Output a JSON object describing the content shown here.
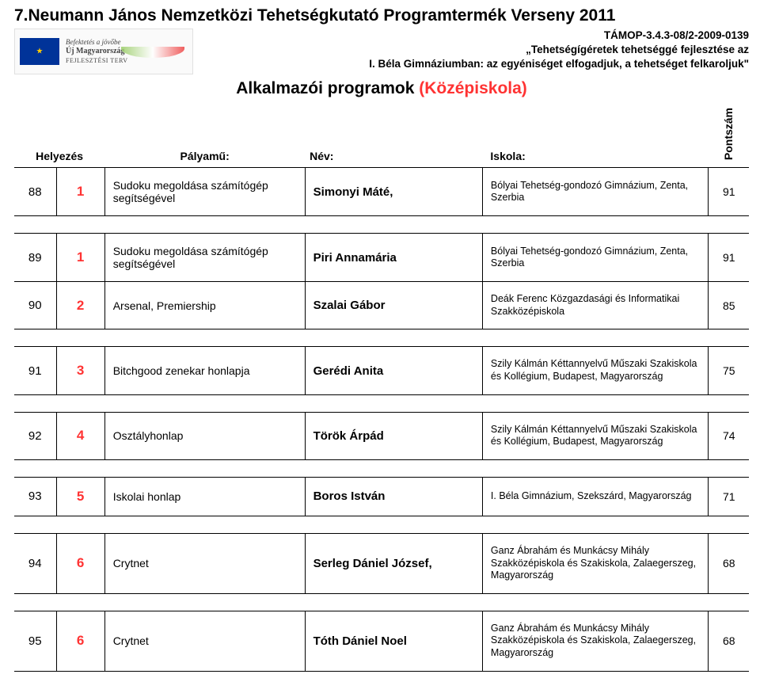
{
  "title": "7.Neumann János Nemzetközi Tehetségkutató Programtermék Verseny 2011",
  "meta": {
    "line1": "TÁMOP-3.4.3-08/2-2009-0139",
    "line2": "„Tehetségígéretek tehetséggé fejlesztése az",
    "line3": "I. Béla Gimnáziumban: az egyéniséget elfogadjuk, a tehetséget felkaroljuk\""
  },
  "logo": {
    "slogan1": "Befektetés a jövőbe",
    "slogan2": "Új Magyarország",
    "slogan3": "FEJLESZTÉSI TERV"
  },
  "section": {
    "main": "Alkalmazói programok ",
    "sub": "(Középiskola)"
  },
  "headers": {
    "a": "Helyezés",
    "b": "Pályamű:",
    "c": "Név:",
    "d": "Iskola:",
    "e": "Pontszám"
  },
  "rows": [
    {
      "idx": "88",
      "rank": "1",
      "work": "Sudoku megoldása számítógép segítségével",
      "name": "Simonyi Máté,",
      "school": "Bólyai Tehetség-gondozó Gimnázium, Zenta, Szerbia",
      "score": "91"
    },
    {
      "idx": "89",
      "rank": "1",
      "work": "Sudoku megoldása számítógép segítségével",
      "name": "Piri Annamária",
      "school": "Bólyai Tehetség-gondozó Gimnázium, Zenta, Szerbia",
      "score": "91"
    },
    {
      "idx": "90",
      "rank": "2",
      "work": "Arsenal, Premiership",
      "name": "Szalai Gábor",
      "school": "Deák Ferenc Közgazdasági és Informatikai Szakközépiskola",
      "score": "85"
    },
    {
      "idx": "91",
      "rank": "3",
      "work": "Bitchgood zenekar honlapja",
      "name": "Gerédi Anita",
      "school": "Szily Kálmán Kéttannyelvű Műszaki Szakiskola és Kollégium, Budapest, Magyarország",
      "score": "75"
    },
    {
      "idx": "92",
      "rank": "4",
      "work": "Osztályhonlap",
      "name": "Török Árpád",
      "school": "Szily Kálmán Kéttannyelvű Műszaki Szakiskola és Kollégium, Budapest, Magyarország",
      "score": "74"
    },
    {
      "idx": "93",
      "rank": "5",
      "work": "Iskolai honlap",
      "name": "Boros István",
      "school": "I. Béla Gimnázium, Szekszárd, Magyarország",
      "score": "71"
    },
    {
      "idx": "94",
      "rank": "6",
      "work": "Crytnet",
      "name": "Serleg Dániel József,",
      "school": "Ganz Ábrahám és Munkácsy Mihály Szakközépiskola és Szakiskola, Zalaegerszeg, Magyarország",
      "score": "68"
    },
    {
      "idx": "95",
      "rank": "6",
      "work": "Crytnet",
      "name": "Tóth Dániel Noel",
      "school": "Ganz Ábrahám és Munkácsy Mihály Szakközépiskola és Szakiskola, Zalaegerszeg, Magyarország",
      "score": "68"
    }
  ]
}
